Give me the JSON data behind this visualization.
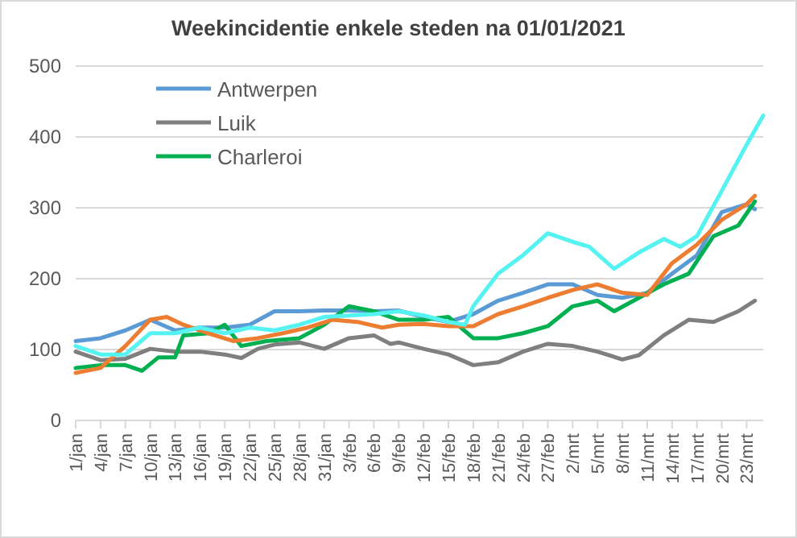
{
  "chart_data": {
    "type": "line",
    "title": "Weekincidentie  enkele steden na 01/01/2021",
    "ylim": [
      0,
      500
    ],
    "yticks": [
      0,
      100,
      200,
      300,
      400,
      500
    ],
    "xlim": [
      "--01-01",
      "--03-25"
    ],
    "xticks": [
      {
        "value": "--01-01",
        "label": "1/jan"
      },
      {
        "value": "--01-04",
        "label": "4/jan"
      },
      {
        "value": "--01-07",
        "label": "7/jan"
      },
      {
        "value": "--01-10",
        "label": "10/jan"
      },
      {
        "value": "--01-13",
        "label": "13/jan"
      },
      {
        "value": "--01-16",
        "label": "16/jan"
      },
      {
        "value": "--01-19",
        "label": "19/jan"
      },
      {
        "value": "--01-22",
        "label": "22/jan"
      },
      {
        "value": "--01-25",
        "label": "25/jan"
      },
      {
        "value": "--01-28",
        "label": "28/jan"
      },
      {
        "value": "--01-31",
        "label": "31/jan"
      },
      {
        "value": "--02-03",
        "label": "3/feb"
      },
      {
        "value": "--02-06",
        "label": "6/feb"
      },
      {
        "value": "--02-09",
        "label": "9/feb"
      },
      {
        "value": "--02-12",
        "label": "12/feb"
      },
      {
        "value": "--02-15",
        "label": "15/feb"
      },
      {
        "value": "--02-18",
        "label": "18/feb"
      },
      {
        "value": "--02-21",
        "label": "21/feb"
      },
      {
        "value": "--02-24",
        "label": "24/feb"
      },
      {
        "value": "--02-27",
        "label": "27/feb"
      },
      {
        "value": "--03-02",
        "label": "2/mrt"
      },
      {
        "value": "--03-05",
        "label": "5/mrt"
      },
      {
        "value": "--03-08",
        "label": "8/mrt"
      },
      {
        "value": "--03-11",
        "label": "11/mrt"
      },
      {
        "value": "--03-14",
        "label": "14/mrt"
      },
      {
        "value": "--03-17",
        "label": "17/mrt"
      },
      {
        "value": "--03-20",
        "label": "20/mrt"
      },
      {
        "value": "--03-23",
        "label": "23/mrt"
      }
    ],
    "grid": "y",
    "legend": "top left",
    "line_style": "solid",
    "marker": "none",
    "series": [
      {
        "name": "Antwerpen",
        "color": "#5b9bd5",
        "x": [
          "--01-01",
          "--01-04",
          "--01-07",
          "--01-10",
          "--01-13",
          "--01-16",
          "--01-19",
          "--01-22",
          "--01-25",
          "--01-28",
          "--01-31",
          "--02-03",
          "--02-06",
          "--02-09",
          "--02-12",
          "--02-15",
          "--02-18",
          "--02-21",
          "--02-24",
          "--02-27",
          "--03-02",
          "--03-05",
          "--03-08",
          "--03-11",
          "--03-14",
          "--03-17",
          "--03-20",
          "--03-23",
          "--03-24"
        ],
        "values": [
          112,
          116,
          127,
          142,
          127,
          131,
          131,
          135,
          154,
          154,
          155,
          155,
          154,
          155,
          146,
          139,
          150,
          169,
          180,
          192,
          192,
          177,
          173,
          180,
          207,
          233,
          294,
          305,
          298
        ]
      },
      {
        "name": "Luik",
        "color": "#7f7f7f",
        "x": [
          "--01-01",
          "--01-04",
          "--01-07",
          "--01-10",
          "--01-13",
          "--01-16",
          "--01-19",
          "--01-21",
          "--01-23",
          "--01-25",
          "--01-28",
          "--01-31",
          "--02-03",
          "--02-06",
          "--02-08",
          "--02-09",
          "--02-12",
          "--02-15",
          "--02-18",
          "--02-21",
          "--02-24",
          "--02-27",
          "--03-02",
          "--03-05",
          "--03-08",
          "--03-10",
          "--03-13",
          "--03-16",
          "--03-19",
          "--03-22",
          "--03-24"
        ],
        "values": [
          97,
          85,
          87,
          101,
          97,
          97,
          93,
          88,
          101,
          107,
          110,
          101,
          116,
          120,
          108,
          110,
          101,
          93,
          78,
          82,
          97,
          108,
          105,
          97,
          86,
          92,
          120,
          142,
          139,
          154,
          169
        ]
      },
      {
        "name": "Charleroi",
        "color": "#00b050",
        "x": [
          "--01-01",
          "--01-04",
          "--01-07",
          "--01-09",
          "--01-11",
          "--01-13",
          "--01-14",
          "--01-17",
          "--01-19",
          "--01-21",
          "--01-24",
          "--01-28",
          "--01-31",
          "--02-03",
          "--02-06",
          "--02-09",
          "--02-12",
          "--02-15",
          "--02-18",
          "--02-21",
          "--02-24",
          "--02-27",
          "--03-02",
          "--03-05",
          "--03-07",
          "--03-10",
          "--03-13",
          "--03-16",
          "--03-19",
          "--03-22",
          "--03-24"
        ],
        "values": [
          74,
          78,
          78,
          70,
          89,
          89,
          120,
          123,
          135,
          105,
          112,
          116,
          135,
          161,
          154,
          142,
          142,
          146,
          116,
          116,
          123,
          133,
          161,
          169,
          154,
          173,
          192,
          207,
          260,
          275,
          309
        ]
      },
      {
        "color": "#ed7d31",
        "x": [
          "--01-01",
          "--01-04",
          "--01-07",
          "--01-10",
          "--01-12",
          "--01-14",
          "--01-17",
          "--01-20",
          "--01-23",
          "--01-26",
          "--01-29",
          "--02-01",
          "--02-04",
          "--02-07",
          "--02-09",
          "--02-12",
          "--02-15",
          "--02-18",
          "--02-21",
          "--02-24",
          "--02-27",
          "--03-02",
          "--03-05",
          "--03-08",
          "--03-11",
          "--03-14",
          "--03-17",
          "--03-20",
          "--03-23",
          "--03-24"
        ],
        "values": [
          67,
          74,
          105,
          142,
          146,
          135,
          123,
          112,
          116,
          123,
          131,
          142,
          139,
          131,
          135,
          136,
          133,
          133,
          150,
          161,
          173,
          184,
          192,
          180,
          177,
          222,
          248,
          283,
          305,
          317
        ]
      },
      {
        "color": "#55f2f2",
        "x": [
          "--01-01",
          "--01-04",
          "--01-07",
          "--01-10",
          "--01-13",
          "--01-16",
          "--01-19",
          "--01-22",
          "--01-25",
          "--01-28",
          "--01-31",
          "--02-03",
          "--02-06",
          "--02-09",
          "--02-12",
          "--02-15",
          "--02-17",
          "--02-18",
          "--02-21",
          "--02-24",
          "--02-27",
          "--03-02",
          "--03-04",
          "--03-07",
          "--03-10",
          "--03-13",
          "--03-15",
          "--03-17",
          "--03-20",
          "--03-23",
          "--03-25"
        ],
        "values": [
          105,
          93,
          93,
          123,
          123,
          131,
          123,
          131,
          127,
          135,
          146,
          148,
          150,
          154,
          148,
          139,
          135,
          161,
          207,
          233,
          264,
          252,
          245,
          214,
          237,
          256,
          245,
          260,
          324,
          389,
          430
        ]
      }
    ]
  }
}
